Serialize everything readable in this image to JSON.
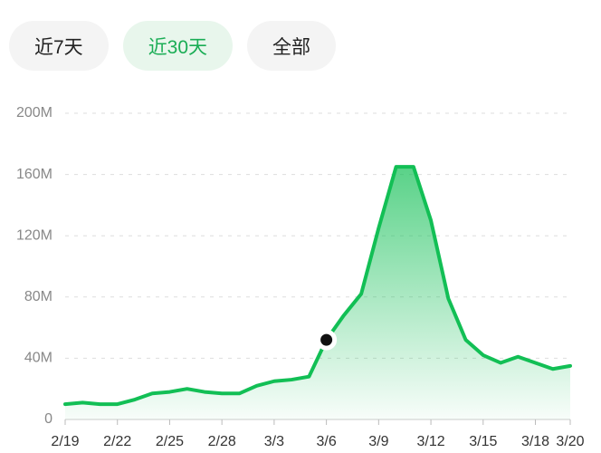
{
  "tabs": [
    "近7天",
    "近30天",
    "全部"
  ],
  "active_tab": 1,
  "chart_data": {
    "type": "area",
    "categories": [
      "2/19",
      null,
      null,
      "2/22",
      null,
      null,
      "2/25",
      null,
      null,
      "2/28",
      null,
      null,
      "3/3",
      null,
      null,
      "3/6",
      null,
      null,
      "3/9",
      null,
      null,
      "3/12",
      null,
      null,
      "3/15",
      null,
      null,
      "3/18",
      null,
      "3/20"
    ],
    "values": [
      10000000,
      11000000,
      10000000,
      10000000,
      13000000,
      17000000,
      18000000,
      20000000,
      18000000,
      17000000,
      17000000,
      22000000,
      25000000,
      26000000,
      28000000,
      52000000,
      68000000,
      82000000,
      125000000,
      165000000,
      165000000,
      130000000,
      79000000,
      52000000,
      42000000,
      37000000,
      41000000,
      37000000,
      33000000,
      35000000
    ],
    "highlight_index": 15,
    "color": "#12bf55",
    "ylim": [
      0,
      200000000
    ],
    "yticks": [
      0,
      {
        "value": 40000000,
        "label": "40M"
      },
      {
        "value": 80000000,
        "label": "80M"
      },
      {
        "value": 120000000,
        "label": "120M"
      },
      {
        "value": 160000000,
        "label": "160M"
      },
      {
        "value": 200000000,
        "label": "200M"
      }
    ],
    "grid": true
  }
}
